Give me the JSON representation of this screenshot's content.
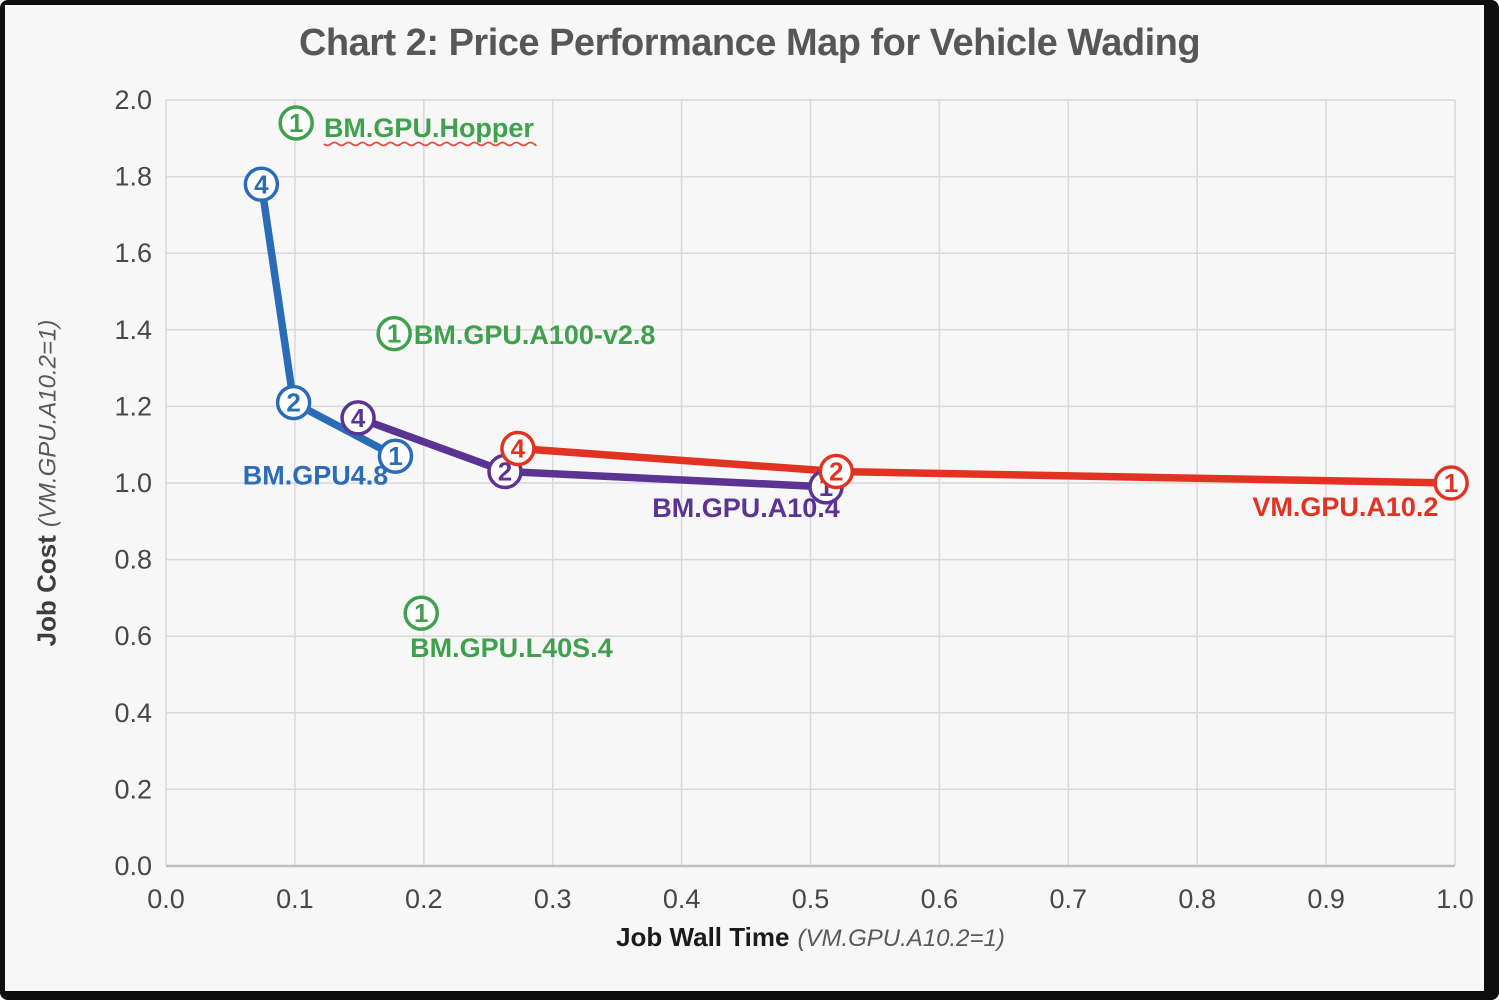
{
  "chart_data": {
    "type": "line",
    "title": "Chart 2: Price Performance Map for Vehicle Wading",
    "xlabel": "Job Wall Time",
    "xlabel_unit": "(VM.GPU.A10.2=1)",
    "ylabel": "Job Cost",
    "ylabel_unit": "(VM.GPU.A10.2=1)",
    "xlim": [
      0.0,
      1.0
    ],
    "ylim": [
      0.0,
      2.0
    ],
    "x_ticks": [
      "0.0",
      "0.1",
      "0.2",
      "0.3",
      "0.4",
      "0.5",
      "0.6",
      "0.7",
      "0.8",
      "0.9",
      "1.0"
    ],
    "y_ticks": [
      "0.0",
      "0.2",
      "0.4",
      "0.6",
      "0.8",
      "1.0",
      "1.2",
      "1.4",
      "1.6",
      "1.8",
      "2.0"
    ],
    "grid": true,
    "background_color": "#F7F7F7",
    "gridline_color": "#D9D9D9",
    "axis_line_color": "#BDBDBD",
    "title_color": "#575757",
    "series": [
      {
        "name": "BM.GPU4.8",
        "color": "#2B6CB8",
        "points": [
          {
            "marker": "4",
            "x": 0.074,
            "y": 1.78
          },
          {
            "marker": "2",
            "x": 0.099,
            "y": 1.21
          },
          {
            "marker": "1",
            "x": 0.178,
            "y": 1.07
          }
        ],
        "label_pos": {
          "x": 0.116,
          "y": 1.02
        }
      },
      {
        "name": "BM.GPU.A10.4",
        "color": "#5B3493",
        "points": [
          {
            "marker": "4",
            "x": 0.149,
            "y": 1.17
          },
          {
            "marker": "2",
            "x": 0.263,
            "y": 1.03
          },
          {
            "marker": "1",
            "x": 0.512,
            "y": 0.99
          }
        ],
        "label_pos": {
          "x": 0.45,
          "y": 0.935
        }
      },
      {
        "name": "VM.GPU.A10.2",
        "color": "#E23322",
        "points": [
          {
            "marker": "4",
            "x": 0.273,
            "y": 1.09
          },
          {
            "marker": "2",
            "x": 0.52,
            "y": 1.03
          },
          {
            "marker": "1",
            "x": 0.997,
            "y": 1.0
          }
        ],
        "label_pos": {
          "x": 0.915,
          "y": 0.937
        }
      }
    ],
    "single_points": [
      {
        "name": "BM.GPU.Hopper",
        "color": "#3FA14D",
        "marker": "1",
        "x": 0.101,
        "y": 1.94,
        "label_pos": {
          "x": 0.204,
          "y": 1.927
        },
        "spellcheck_underline": true
      },
      {
        "name": "BM.GPU.A100-v2.8",
        "color": "#3FA14D",
        "marker": "1",
        "x": 0.177,
        "y": 1.39,
        "label_pos": {
          "x": 0.286,
          "y": 1.386
        },
        "spellcheck_underline": false
      },
      {
        "name": "BM.GPU.L40S.4",
        "color": "#3FA14D",
        "marker": "1",
        "x": 0.198,
        "y": 0.66,
        "label_pos": {
          "x": 0.268,
          "y": 0.569
        },
        "spellcheck_underline": false
      }
    ]
  }
}
